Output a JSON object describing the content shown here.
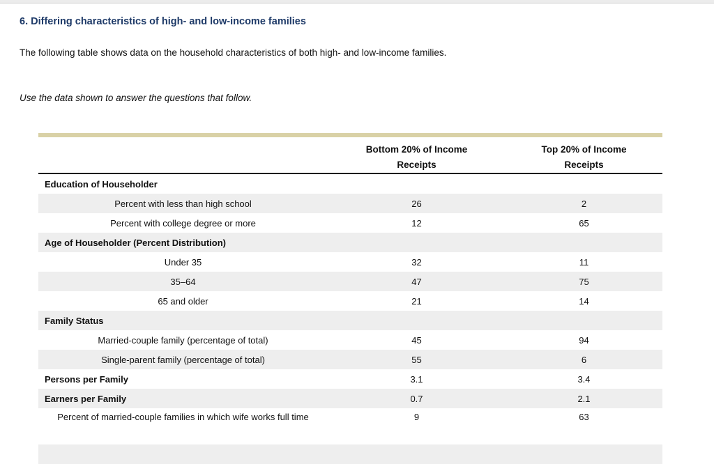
{
  "page": {
    "heading": "6. Differing characteristics of high- and low-income families",
    "intro": "The following table shows data on the household characteristics of both high- and low-income families.",
    "instruction": "Use the data shown to answer the questions that follow."
  },
  "colors": {
    "heading": "#1e3a68",
    "table_accent": "#d9d1a6",
    "zebra_row": "#eeeeee"
  },
  "table": {
    "header": {
      "bottom": {
        "line1": "Bottom 20% of Income",
        "line2": "Receipts"
      },
      "top": {
        "line1": "Top 20% of Income",
        "line2": "Receipts"
      }
    },
    "rows": [
      {
        "type": "section",
        "label": "Education of Householder",
        "bottom": "",
        "top": ""
      },
      {
        "type": "data",
        "label": "Percent with less than high school",
        "bottom": "26",
        "top": "2"
      },
      {
        "type": "data",
        "label": "Percent with college degree or more",
        "bottom": "12",
        "top": "65"
      },
      {
        "type": "section",
        "label": "Age of Householder (Percent Distribution)",
        "bottom": "",
        "top": ""
      },
      {
        "type": "data",
        "label": "Under 35",
        "bottom": "32",
        "top": "11"
      },
      {
        "type": "data",
        "label": "35–64",
        "bottom": "47",
        "top": "75"
      },
      {
        "type": "data",
        "label": "65 and older",
        "bottom": "21",
        "top": "14"
      },
      {
        "type": "section",
        "label": "Family Status",
        "bottom": "",
        "top": ""
      },
      {
        "type": "data",
        "label": "Married-couple family (percentage of total)",
        "bottom": "45",
        "top": "94"
      },
      {
        "type": "data",
        "label": "Single-parent family (percentage of total)",
        "bottom": "55",
        "top": "6"
      },
      {
        "type": "bold-data",
        "label": "Persons per Family",
        "bottom": "3.1",
        "top": "3.4"
      },
      {
        "type": "bold-data",
        "label": "Earners per Family",
        "bottom": "0.7",
        "top": "2.1"
      },
      {
        "type": "data",
        "label": "Percent of married-couple families in which wife works full time",
        "bottom": "9",
        "top": "63",
        "tall": true
      },
      {
        "type": "partial",
        "label": "",
        "bottom": "",
        "top": ""
      }
    ]
  }
}
